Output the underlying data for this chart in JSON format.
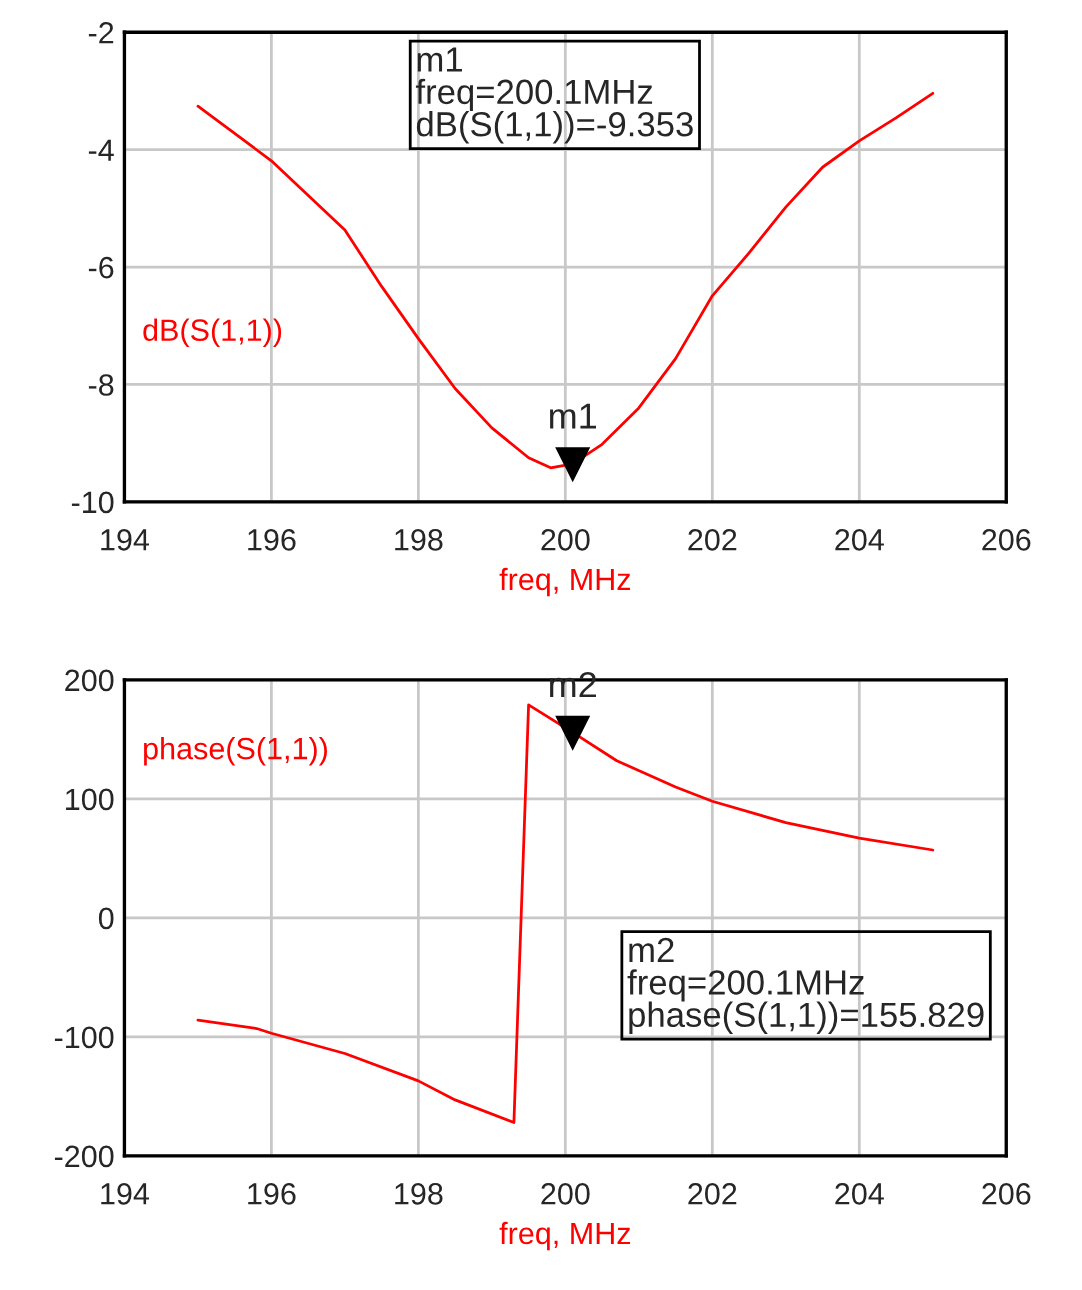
{
  "chart_data": [
    {
      "type": "line",
      "xlabel": "freq, MHz",
      "xlim": [
        194,
        206
      ],
      "xticks": [
        194,
        196,
        198,
        200,
        202,
        204,
        206
      ],
      "ylim": [
        -10,
        -2
      ],
      "yticks": [
        -10,
        -8,
        -6,
        -4,
        -2
      ],
      "grid": true,
      "legend": false,
      "marker": "none",
      "line_style": "solid",
      "series": [
        {
          "name": "dB(S(1,1))",
          "color": "#ff0000",
          "x": [
            195,
            196,
            197,
            197.5,
            198,
            198.5,
            199,
            199.5,
            199.8,
            200.1,
            200.5,
            201,
            201.5,
            202,
            202.5,
            203,
            203.5,
            204,
            204.5,
            205
          ],
          "values": [
            -3.26,
            -4.19,
            -5.37,
            -6.33,
            -7.22,
            -8.07,
            -8.74,
            -9.25,
            -9.42,
            -9.353,
            -9.02,
            -8.4,
            -7.56,
            -6.49,
            -5.76,
            -4.98,
            -4.3,
            -3.85,
            -3.46,
            -3.04
          ]
        }
      ],
      "annotations": [
        {
          "text": "m1",
          "x": 200.1,
          "y": -9.353
        },
        "m1\nfreq=200.1MHz\ndB(S(1,1))=-9.353"
      ]
    },
    {
      "type": "line",
      "xlabel": "freq, MHz",
      "xlim": [
        194,
        206
      ],
      "xticks": [
        194,
        196,
        198,
        200,
        202,
        204,
        206
      ],
      "ylim": [
        -200,
        200
      ],
      "yticks": [
        -200,
        -100,
        0,
        100,
        200
      ],
      "grid": true,
      "legend": false,
      "marker": "none",
      "line_style": "solid",
      "series": [
        {
          "name": "phase(S(1,1))",
          "color": "#ff0000",
          "x": [
            195,
            195.8,
            196,
            197,
            198,
            198.5,
            199.3,
            199.5,
            200.1,
            200.7,
            201.5,
            202,
            203,
            204,
            205
          ],
          "values": [
            -86,
            -93,
            -97,
            -114,
            -137,
            -153,
            -172,
            179,
            155.829,
            132,
            110,
            98,
            80,
            67,
            57
          ]
        }
      ],
      "annotations": [
        {
          "text": "m2",
          "x": 200.1,
          "y": 155.829
        },
        "m2\nfreq=200.1MHz\nphase(S(1,1))=155.829"
      ]
    }
  ]
}
